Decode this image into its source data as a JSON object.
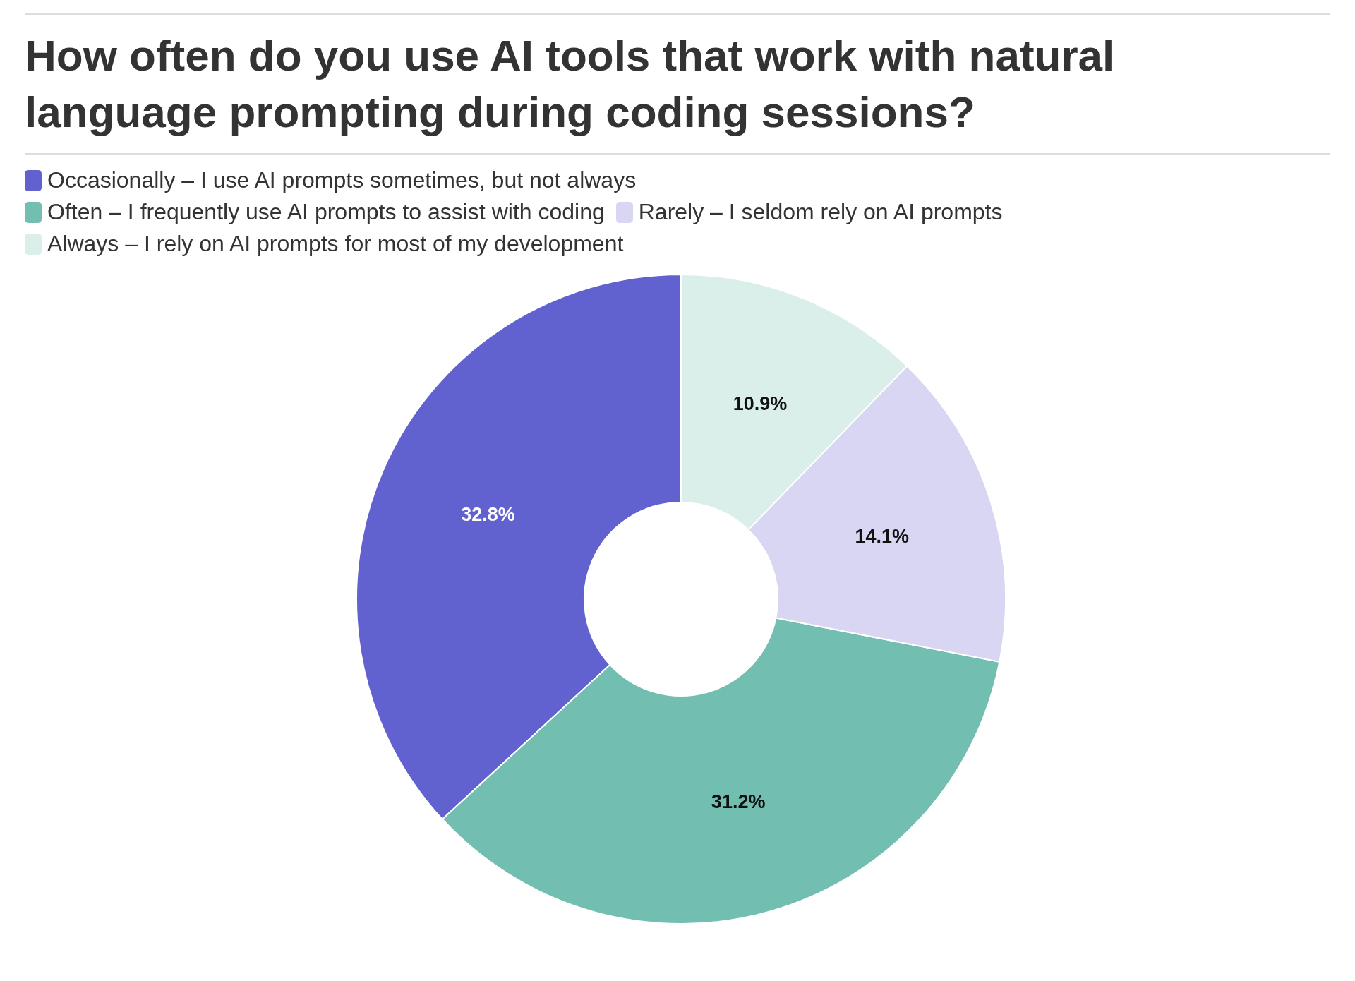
{
  "chart_data": {
    "type": "donut",
    "title": "How often do you use AI tools that work with natural language prompting during coding sessions?",
    "categories": [
      "Occasionally – I use AI prompts sometimes, but not always",
      "Often – I frequently use AI prompts to assist with coding",
      "Rarely – I seldom rely on AI prompts",
      "Always – I rely on AI prompts for most of my development"
    ],
    "values": [
      32.8,
      31.2,
      14.1,
      10.9
    ],
    "colors": [
      "#6161d0",
      "#72bfb1",
      "#d8d6f2",
      "#daeeea"
    ],
    "value_labels": [
      "32.8%",
      "31.2%",
      "14.1%",
      "10.9%"
    ],
    "legend": "top"
  }
}
